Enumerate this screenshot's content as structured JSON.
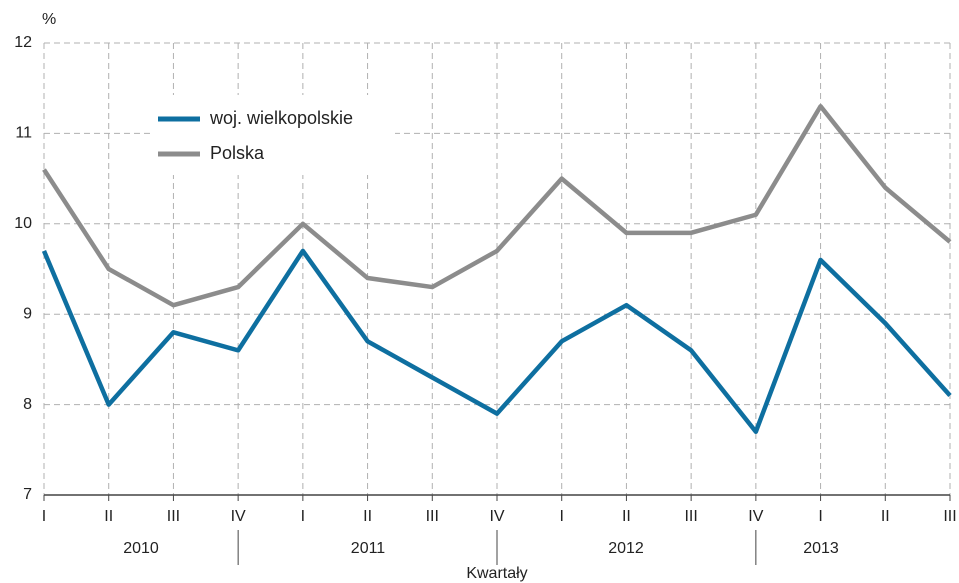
{
  "chart_data": {
    "type": "line",
    "y_unit": "%",
    "x_label": "Kwartały",
    "categories": [
      "I",
      "II",
      "III",
      "IV",
      "I",
      "II",
      "III",
      "IV",
      "I",
      "II",
      "III",
      "IV",
      "I",
      "II",
      "III"
    ],
    "year_groups": [
      "2010",
      "2011",
      "2012",
      "2013"
    ],
    "series": [
      {
        "name": "woj. wielkopolskie",
        "color": "#0e6fa0",
        "values": [
          9.7,
          8.0,
          8.8,
          8.6,
          9.7,
          8.7,
          8.3,
          7.9,
          8.7,
          9.1,
          8.6,
          7.7,
          9.6,
          8.9,
          8.1
        ]
      },
      {
        "name": "Polska",
        "color": "#8c8c8c",
        "values": [
          10.6,
          9.5,
          9.1,
          9.3,
          10.0,
          9.4,
          9.3,
          9.7,
          10.5,
          9.9,
          9.9,
          10.1,
          11.3,
          10.4,
          9.8
        ]
      }
    ],
    "ylim": [
      7,
      12
    ],
    "yticks": [
      7,
      8,
      9,
      10,
      11,
      12
    ],
    "grid": true,
    "legend": "upper left"
  }
}
